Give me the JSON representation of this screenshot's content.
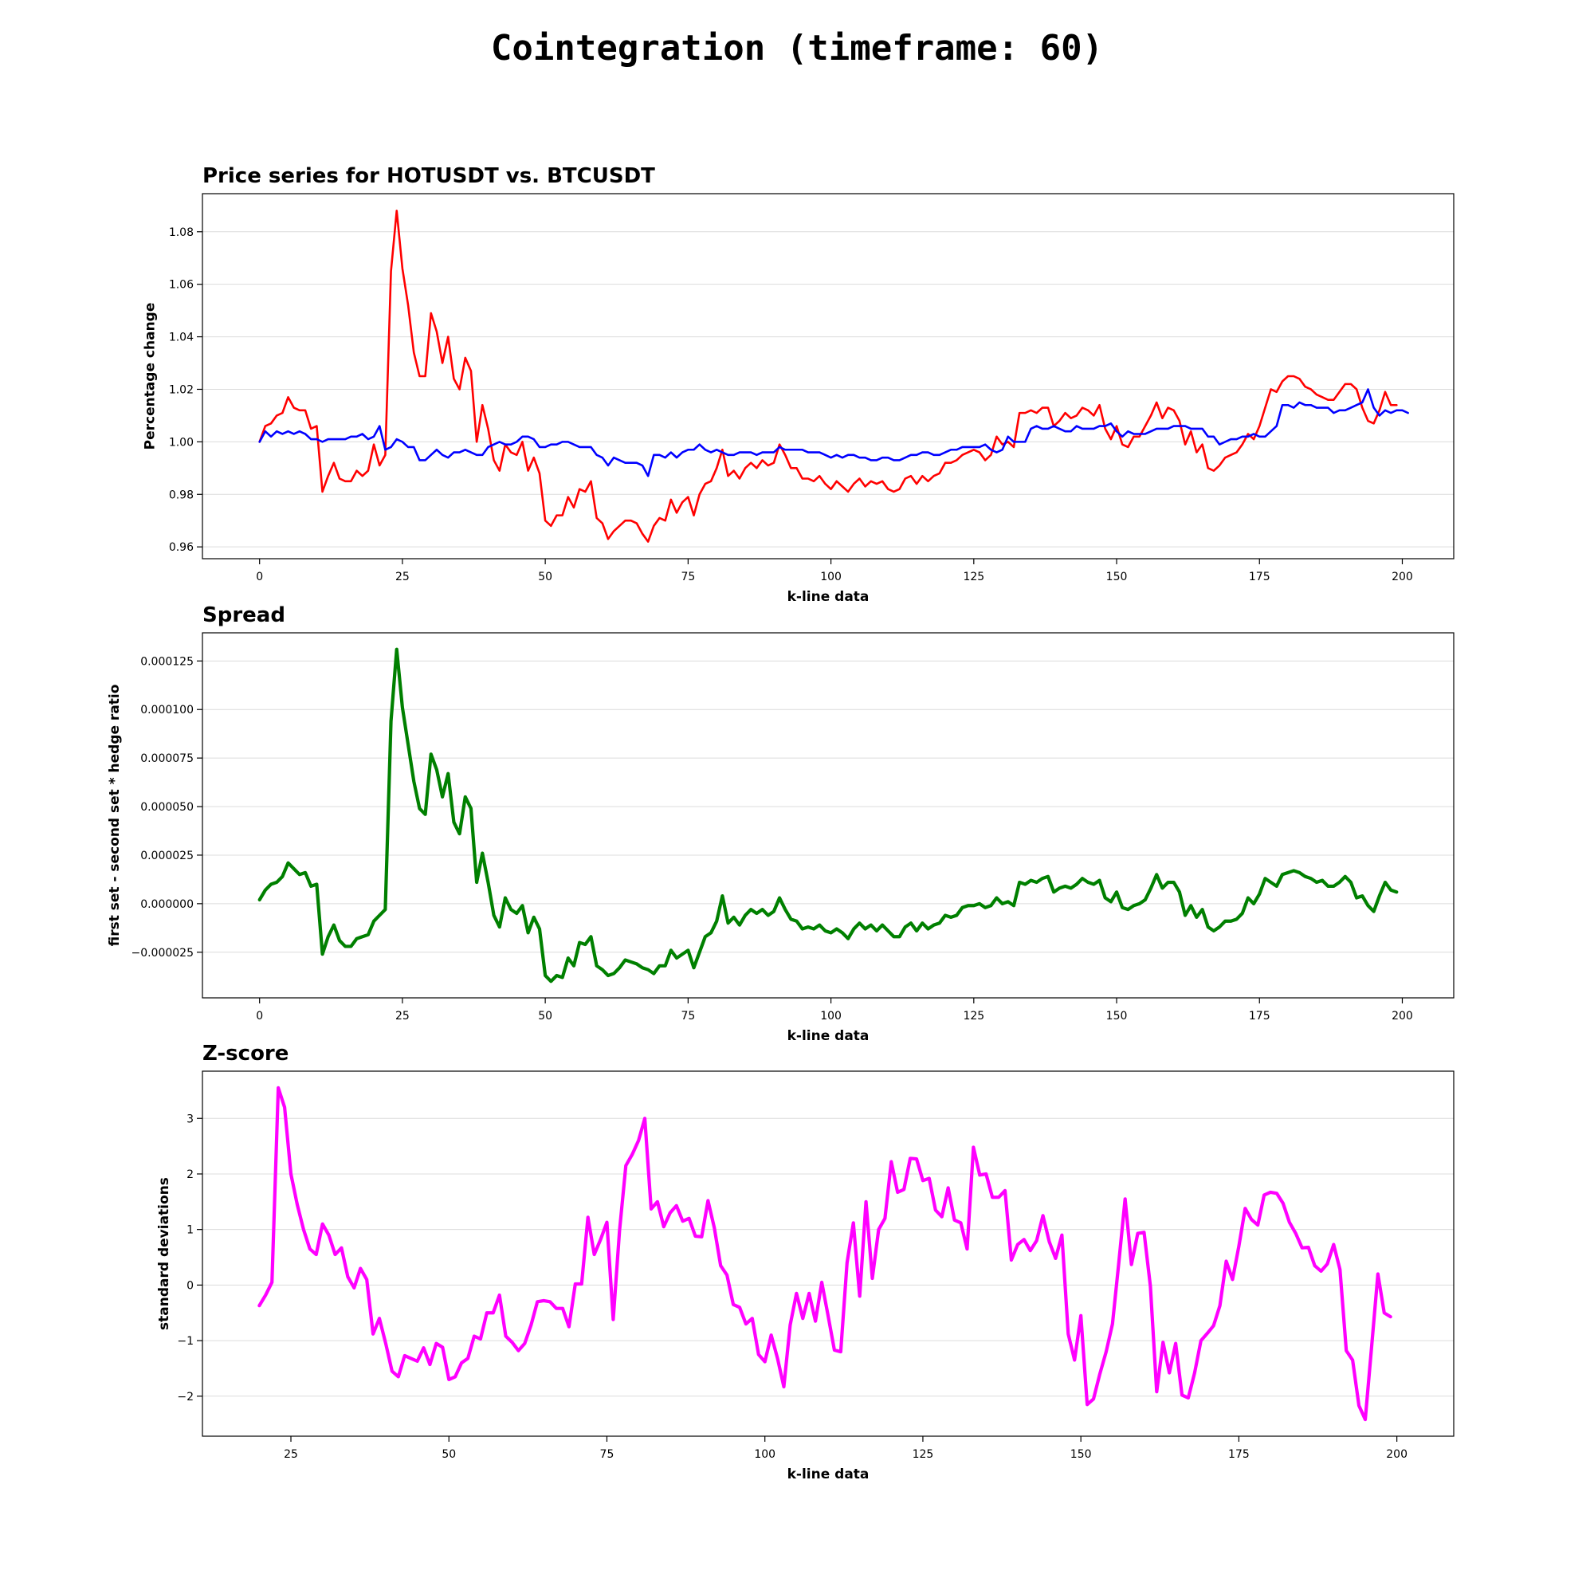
{
  "suptitle": "Cointegration (timeframe: 60)",
  "chart_data": [
    {
      "type": "line",
      "title": "Price series for HOTUSDT vs. BTCUSDT",
      "xlabel": "k-line data",
      "ylabel": "Percentage change",
      "xlim": [
        -10,
        209
      ],
      "ylim": [
        0.9555,
        1.0945
      ],
      "xticks": [
        0,
        25,
        50,
        75,
        100,
        125,
        150,
        175,
        200
      ],
      "yticks": [
        0.96,
        0.98,
        1.0,
        1.02,
        1.04,
        1.06,
        1.08
      ],
      "ytick_labels": [
        "0.96",
        "0.98",
        "1.00",
        "1.02",
        "1.04",
        "1.06",
        "1.08"
      ],
      "grid": "horizontal",
      "series": [
        {
          "name": "HOTUSDT",
          "color": "#ff0000",
          "x0": 0,
          "values": [
            1.0,
            1.006,
            1.007,
            1.01,
            1.011,
            1.017,
            1.013,
            1.012,
            1.012,
            1.005,
            1.006,
            0.981,
            0.987,
            0.992,
            0.986,
            0.985,
            0.985,
            0.989,
            0.987,
            0.989,
            0.999,
            0.991,
            0.995,
            1.065,
            1.088,
            1.066,
            1.052,
            1.034,
            1.025,
            1.025,
            1.049,
            1.042,
            1.03,
            1.04,
            1.024,
            1.02,
            1.032,
            1.027,
            1.0,
            1.014,
            1.005,
            0.993,
            0.989,
            0.999,
            0.996,
            0.995,
            1.0,
            0.989,
            0.994,
            0.988,
            0.97,
            0.968,
            0.972,
            0.972,
            0.979,
            0.975,
            0.982,
            0.981,
            0.985,
            0.971,
            0.969,
            0.963,
            0.966,
            0.968,
            0.97,
            0.97,
            0.969,
            0.965,
            0.962,
            0.968,
            0.971,
            0.97,
            0.978,
            0.973,
            0.977,
            0.979,
            0.972,
            0.98,
            0.984,
            0.985,
            0.99,
            0.997,
            0.987,
            0.989,
            0.986,
            0.99,
            0.992,
            0.99,
            0.993,
            0.991,
            0.992,
            0.999,
            0.995,
            0.99,
            0.99,
            0.986,
            0.986,
            0.985,
            0.987,
            0.984,
            0.982,
            0.985,
            0.983,
            0.981,
            0.984,
            0.986,
            0.983,
            0.985,
            0.984,
            0.985,
            0.982,
            0.981,
            0.982,
            0.986,
            0.987,
            0.984,
            0.987,
            0.985,
            0.987,
            0.988,
            0.992,
            0.992,
            0.993,
            0.995,
            0.996,
            0.997,
            0.996,
            0.993,
            0.995,
            1.002,
            0.999,
            1.0,
            0.998,
            1.011,
            1.011,
            1.012,
            1.011,
            1.013,
            1.013,
            1.006,
            1.008,
            1.011,
            1.009,
            1.01,
            1.013,
            1.012,
            1.01,
            1.014,
            1.005,
            1.001,
            1.006,
            0.999,
            0.998,
            1.002,
            1.002,
            1.006,
            1.01,
            1.015,
            1.009,
            1.013,
            1.012,
            1.008,
            0.999,
            1.004,
            0.996,
            0.999,
            0.99,
            0.989,
            0.991,
            0.994,
            0.995,
            0.996,
            0.999,
            1.003,
            1.001,
            1.006,
            1.013,
            1.02,
            1.019,
            1.023,
            1.025,
            1.025,
            1.024,
            1.021,
            1.02,
            1.018,
            1.017,
            1.016,
            1.016,
            1.019,
            1.022,
            1.022,
            1.02,
            1.013,
            1.008,
            1.007,
            1.012,
            1.019,
            1.014,
            1.014
          ]
        },
        {
          "name": "BTCUSDT",
          "color": "#0000ff",
          "x0": 0,
          "values": [
            1.0,
            1.004,
            1.002,
            1.004,
            1.003,
            1.004,
            1.003,
            1.004,
            1.003,
            1.001,
            1.001,
            1.0,
            1.001,
            1.001,
            1.001,
            1.001,
            1.002,
            1.002,
            1.003,
            1.001,
            1.002,
            1.006,
            0.997,
            0.998,
            1.001,
            1.0,
            0.998,
            0.998,
            0.993,
            0.993,
            0.995,
            0.997,
            0.995,
            0.994,
            0.996,
            0.996,
            0.997,
            0.996,
            0.995,
            0.995,
            0.998,
            0.999,
            1.0,
            0.999,
            0.999,
            1.0,
            1.002,
            1.002,
            1.001,
            0.998,
            0.998,
            0.999,
            0.999,
            1.0,
            1.0,
            0.999,
            0.998,
            0.998,
            0.998,
            0.995,
            0.994,
            0.991,
            0.994,
            0.993,
            0.992,
            0.992,
            0.992,
            0.991,
            0.987,
            0.995,
            0.995,
            0.994,
            0.996,
            0.994,
            0.996,
            0.997,
            0.997,
            0.999,
            0.997,
            0.996,
            0.997,
            0.996,
            0.995,
            0.995,
            0.996,
            0.996,
            0.996,
            0.995,
            0.996,
            0.996,
            0.996,
            0.998,
            0.997,
            0.997,
            0.997,
            0.997,
            0.996,
            0.996,
            0.996,
            0.995,
            0.994,
            0.995,
            0.994,
            0.995,
            0.995,
            0.994,
            0.994,
            0.993,
            0.993,
            0.994,
            0.994,
            0.993,
            0.993,
            0.994,
            0.995,
            0.995,
            0.996,
            0.996,
            0.995,
            0.995,
            0.996,
            0.997,
            0.997,
            0.998,
            0.998,
            0.998,
            0.998,
            0.999,
            0.997,
            0.996,
            0.997,
            1.002,
            1.0,
            1.0,
            1.0,
            1.005,
            1.006,
            1.005,
            1.005,
            1.006,
            1.005,
            1.004,
            1.004,
            1.006,
            1.005,
            1.005,
            1.005,
            1.006,
            1.006,
            1.007,
            1.004,
            1.002,
            1.004,
            1.003,
            1.003,
            1.003,
            1.004,
            1.005,
            1.005,
            1.005,
            1.006,
            1.006,
            1.006,
            1.005,
            1.005,
            1.005,
            1.002,
            1.002,
            0.999,
            1.0,
            1.001,
            1.001,
            1.002,
            1.002,
            1.003,
            1.002,
            1.002,
            1.004,
            1.006,
            1.014,
            1.014,
            1.013,
            1.015,
            1.014,
            1.014,
            1.013,
            1.013,
            1.013,
            1.011,
            1.012,
            1.012,
            1.013,
            1.014,
            1.015,
            1.02,
            1.013,
            1.01,
            1.012,
            1.011,
            1.012,
            1.012,
            1.011
          ]
        }
      ]
    },
    {
      "type": "line",
      "title": "Spread",
      "xlabel": "k-line data",
      "ylabel": "first set - second set * hedge ratio",
      "xlim": [
        -10,
        209
      ],
      "ylim": [
        -4.85e-05,
        0.0001395
      ],
      "xticks": [
        0,
        25,
        50,
        75,
        100,
        125,
        150,
        175,
        200
      ],
      "yticks": [
        -2.5e-05,
        0.0,
        2.5e-05,
        5e-05,
        7.5e-05,
        0.0001,
        0.000125
      ],
      "ytick_labels": [
        "−0.000025",
        "0.000000",
        "0.000025",
        "0.000050",
        "0.000075",
        "0.000100",
        "0.000125"
      ],
      "grid": "horizontal",
      "series": [
        {
          "name": "Spread",
          "color": "#008000",
          "x0": 0,
          "values": [
            2e-06,
            7e-06,
            1e-05,
            1.1e-05,
            1.4e-05,
            2.1e-05,
            1.8e-05,
            1.5e-05,
            1.6e-05,
            9e-06,
            1e-05,
            -2.6e-05,
            -1.7e-05,
            -1.1e-05,
            -1.9e-05,
            -2.2e-05,
            -2.2e-05,
            -1.8e-05,
            -1.7e-05,
            -1.6e-05,
            -9e-06,
            -6e-06,
            -3e-06,
            9.4e-05,
            0.000131,
            0.000101,
            8.2e-05,
            6.3e-05,
            4.9e-05,
            4.6e-05,
            7.7e-05,
            6.9e-05,
            5.5e-05,
            6.7e-05,
            4.2e-05,
            3.6e-05,
            5.5e-05,
            4.9e-05,
            1.1e-05,
            2.6e-05,
            1.1e-05,
            -6e-06,
            -1.2e-05,
            3e-06,
            -3e-06,
            -5e-06,
            -1e-06,
            -1.5e-05,
            -7e-06,
            -1.3e-05,
            -3.7e-05,
            -4e-05,
            -3.7e-05,
            -3.8e-05,
            -2.8e-05,
            -3.2e-05,
            -2e-05,
            -2.1e-05,
            -1.7e-05,
            -3.2e-05,
            -3.4e-05,
            -3.7e-05,
            -3.6e-05,
            -3.3e-05,
            -2.9e-05,
            -3e-05,
            -3.1e-05,
            -3.3e-05,
            -3.4e-05,
            -3.6e-05,
            -3.2e-05,
            -3.2e-05,
            -2.4e-05,
            -2.8e-05,
            -2.6e-05,
            -2.4e-05,
            -3.3e-05,
            -2.5e-05,
            -1.7e-05,
            -1.5e-05,
            -9e-06,
            4e-06,
            -1e-05,
            -7e-06,
            -1.1e-05,
            -6e-06,
            -3e-06,
            -5e-06,
            -3e-06,
            -6e-06,
            -4e-06,
            3e-06,
            -3e-06,
            -8e-06,
            -9e-06,
            -1.3e-05,
            -1.2e-05,
            -1.3e-05,
            -1.1e-05,
            -1.4e-05,
            -1.5e-05,
            -1.3e-05,
            -1.5e-05,
            -1.8e-05,
            -1.3e-05,
            -1e-05,
            -1.3e-05,
            -1.1e-05,
            -1.4e-05,
            -1.1e-05,
            -1.4e-05,
            -1.7e-05,
            -1.7e-05,
            -1.2e-05,
            -1e-05,
            -1.4e-05,
            -1e-05,
            -1.3e-05,
            -1.1e-05,
            -1e-05,
            -6e-06,
            -7e-06,
            -6e-06,
            -2e-06,
            -1e-06,
            -1e-06,
            0.0,
            -2e-06,
            -1e-06,
            3e-06,
            0.0,
            1e-06,
            -1e-06,
            1.1e-05,
            1e-05,
            1.2e-05,
            1.1e-05,
            1.3e-05,
            1.4e-05,
            6e-06,
            8e-06,
            9e-06,
            8e-06,
            1e-05,
            1.3e-05,
            1.1e-05,
            1e-05,
            1.2e-05,
            3e-06,
            1e-06,
            6e-06,
            -2e-06,
            -3e-06,
            -1e-06,
            0.0,
            2e-06,
            8e-06,
            1.5e-05,
            8e-06,
            1.1e-05,
            1.1e-05,
            6e-06,
            -6e-06,
            -1e-06,
            -7e-06,
            -3e-06,
            -1.2e-05,
            -1.4e-05,
            -1.2e-05,
            -9e-06,
            -9e-06,
            -8e-06,
            -5e-06,
            3e-06,
            0.0,
            5e-06,
            1.3e-05,
            1.1e-05,
            9e-06,
            1.5e-05,
            1.6e-05,
            1.7e-05,
            1.6e-05,
            1.4e-05,
            1.3e-05,
            1.1e-05,
            1.2e-05,
            9e-06,
            9e-06,
            1.1e-05,
            1.4e-05,
            1.1e-05,
            3e-06,
            4e-06,
            -1e-06,
            -4e-06,
            4e-06,
            1.1e-05,
            7e-06,
            6e-06
          ]
        }
      ]
    },
    {
      "type": "line",
      "title": "Z-score",
      "xlabel": "k-line data",
      "ylabel": "standard deviations",
      "xlim": [
        11,
        209
      ],
      "ylim": [
        -2.72,
        3.85
      ],
      "xticks": [
        25,
        50,
        75,
        100,
        125,
        150,
        175,
        200
      ],
      "yticks": [
        -2,
        -1,
        0,
        1,
        2,
        3
      ],
      "ytick_labels": [
        "−2",
        "−1",
        "0",
        "1",
        "2",
        "3"
      ],
      "grid": "horizontal",
      "series": [
        {
          "name": "Z-score",
          "color": "#ff00ff",
          "x0": 20,
          "values": [
            -0.37,
            -0.18,
            0.05,
            3.55,
            3.2,
            2.0,
            1.45,
            1.0,
            0.65,
            0.55,
            1.1,
            0.9,
            0.55,
            0.67,
            0.15,
            -0.05,
            0.3,
            0.1,
            -0.88,
            -0.6,
            -1.05,
            -1.55,
            -1.65,
            -1.27,
            -1.32,
            -1.37,
            -1.13,
            -1.43,
            -1.05,
            -1.12,
            -1.7,
            -1.65,
            -1.4,
            -1.32,
            -0.92,
            -0.97,
            -0.5,
            -0.5,
            -0.18,
            -0.92,
            -1.03,
            -1.18,
            -1.05,
            -0.72,
            -0.3,
            -0.28,
            -0.3,
            -0.42,
            -0.42,
            -0.75,
            0.02,
            0.02,
            1.22,
            0.55,
            0.82,
            1.13,
            -0.62,
            0.98,
            2.15,
            2.35,
            2.6,
            3.0,
            1.37,
            1.5,
            1.05,
            1.3,
            1.43,
            1.15,
            1.2,
            0.88,
            0.87,
            1.52,
            1.03,
            0.35,
            0.18,
            -0.35,
            -0.4,
            -0.7,
            -0.6,
            -1.25,
            -1.38,
            -0.9,
            -1.32,
            -1.83,
            -0.72,
            -0.15,
            -0.6,
            -0.15,
            -0.65,
            0.05,
            -0.55,
            -1.17,
            -1.2,
            0.4,
            1.12,
            -0.2,
            1.5,
            0.12,
            1.0,
            1.2,
            2.22,
            1.67,
            1.72,
            2.28,
            2.27,
            1.88,
            1.92,
            1.35,
            1.23,
            1.75,
            1.17,
            1.12,
            0.65,
            2.48,
            1.98,
            2.0,
            1.58,
            1.58,
            1.7,
            0.45,
            0.73,
            0.82,
            0.62,
            0.8,
            1.25,
            0.78,
            0.48,
            0.9,
            -0.88,
            -1.35,
            -0.55,
            -2.15,
            -2.05,
            -1.6,
            -1.2,
            -0.7,
            0.4,
            1.55,
            0.37,
            0.93,
            0.95,
            -0.02,
            -1.92,
            -1.03,
            -1.58,
            -1.05,
            -1.98,
            -2.03,
            -1.58,
            -1.0,
            -0.87,
            -0.73,
            -0.37,
            0.43,
            0.1,
            0.7,
            1.38,
            1.18,
            1.08,
            1.62,
            1.67,
            1.65,
            1.47,
            1.13,
            0.93,
            0.67,
            0.68,
            0.35,
            0.25,
            0.38,
            0.73,
            0.28,
            -1.18,
            -1.35,
            -2.17,
            -2.42,
            -1.12,
            0.2,
            -0.5,
            -0.57
          ]
        }
      ]
    }
  ]
}
